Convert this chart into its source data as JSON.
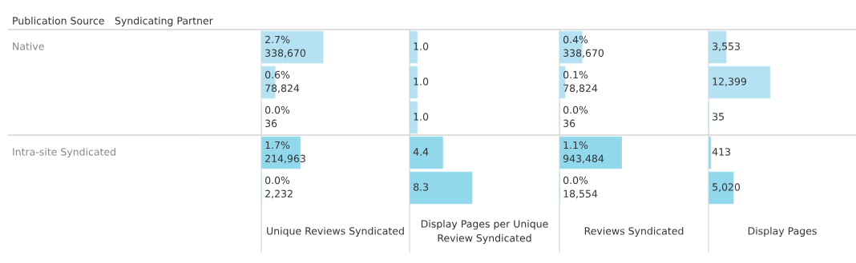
{
  "chart_data": [
    {
      "type": "bar",
      "orientation": "horizontal",
      "xlabel": "Unique Reviews Syndicated",
      "tick_labels": false,
      "categories": [
        null,
        null,
        null,
        null,
        null
      ],
      "values": [
        2.7,
        0.6,
        0.0,
        1.7,
        0.0
      ],
      "value_labels": [
        "2.7%\n338,670",
        "0.6%\n78,824",
        "0.0%\n36",
        "1.7%\n214,963",
        "0.0%\n2,232"
      ],
      "colors": [
        "#b5e2f3",
        "#b5e2f3",
        "#b5e2f3",
        "#92d8ed",
        "#92d8ed"
      ],
      "annotations": [
        "Publication Source",
        "Syndicating Partner",
        "Native",
        "Intra-site Syndicated"
      ]
    },
    {
      "type": "bar",
      "orientation": "horizontal",
      "xlabel": "Display Pages per Unique Review Syndicated",
      "tick_labels": false,
      "categories": [
        null,
        null,
        null,
        null,
        null
      ],
      "values": [
        1.0,
        1.0,
        1.0,
        4.4,
        8.3
      ],
      "value_labels": [
        "1.0",
        "1.0",
        "1.0",
        "4.4",
        "8.3"
      ],
      "colors": [
        "#b5e2f3",
        "#b5e2f3",
        "#b5e2f3",
        "#92d8ed",
        "#92d8ed"
      ]
    },
    {
      "type": "bar",
      "orientation": "horizontal",
      "xlabel": "Reviews Syndicated",
      "tick_labels": false,
      "categories": [
        null,
        null,
        null,
        null,
        null
      ],
      "values": [
        0.4,
        0.1,
        0.0,
        1.1,
        0.0
      ],
      "value_labels": [
        "0.4%\n338,670",
        "0.1%\n78,824",
        "0.0%\n36",
        "1.1%\n943,484",
        "0.0%\n18,554"
      ],
      "colors": [
        "#b5e2f3",
        "#b5e2f3",
        "#b5e2f3",
        "#92d8ed",
        "#92d8ed"
      ]
    },
    {
      "type": "bar",
      "orientation": "horizontal",
      "xlabel": "Display Pages",
      "tick_labels": false,
      "categories": [
        null,
        null,
        null,
        null,
        null
      ],
      "values": [
        3553,
        12399,
        35,
        413,
        5020
      ],
      "value_labels": [
        "3,553",
        "12,399",
        "35",
        "413",
        "5,020"
      ],
      "colors": [
        "#b5e2f3",
        "#b5e2f3",
        "#b5e2f3",
        "#92d8ed",
        "#92d8ed"
      ]
    }
  ]
}
